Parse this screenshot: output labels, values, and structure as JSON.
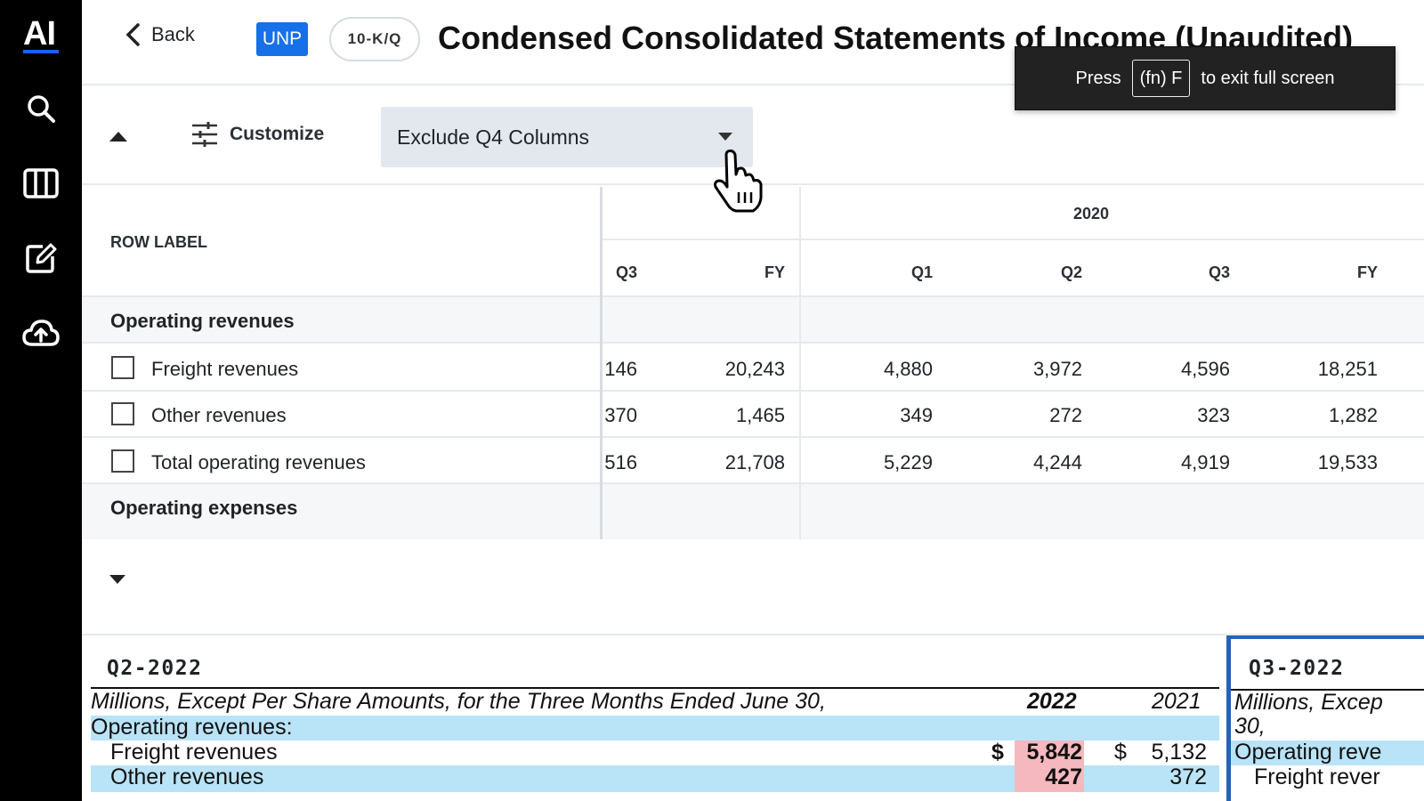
{
  "sidebar": {
    "logo": "AI",
    "items": [
      {
        "icon": "search-icon"
      },
      {
        "icon": "columns-icon"
      },
      {
        "icon": "edit-icon"
      },
      {
        "icon": "cloud-upload-icon"
      }
    ]
  },
  "header": {
    "back_label": "Back",
    "ticker": "UNP",
    "form_type": "10-K/Q",
    "title": "Condensed Consolidated Statements of Income (Unaudited)"
  },
  "toast": {
    "press": "Press",
    "key": "(fn) F",
    "message": "to exit full screen"
  },
  "toolbar": {
    "customize_label": "Customize",
    "filter_value": "Exclude Q4 Columns"
  },
  "table": {
    "row_label_header": "ROW LABEL",
    "year_header": "2020",
    "columns": [
      "Q3",
      "FY",
      "Q1",
      "Q2",
      "Q3",
      "FY"
    ],
    "sections": [
      {
        "label": "Operating revenues",
        "rows": [
          {
            "label": "Freight revenues",
            "values": [
              "146",
              "20,243",
              "4,880",
              "3,972",
              "4,596",
              "18,251"
            ]
          },
          {
            "label": "Other revenues",
            "values": [
              "370",
              "1,465",
              "349",
              "272",
              "323",
              "1,282"
            ]
          },
          {
            "label": "Total operating revenues",
            "values": [
              "516",
              "21,708",
              "5,229",
              "4,244",
              "4,919",
              "19,533"
            ]
          }
        ]
      },
      {
        "label": "Operating expenses",
        "rows": []
      }
    ]
  },
  "documents": [
    {
      "period": "Q2-2022",
      "caption": "Millions, Except Per Share Amounts, for the Three Months Ended June 30,",
      "year_current": "2022",
      "year_prior": "2021",
      "section": "Operating revenues:",
      "rows": [
        {
          "label": "Freight revenues",
          "currency": "$",
          "current": "5,842",
          "prior_currency": "$",
          "prior": "5,132"
        },
        {
          "label": "Other revenues",
          "current": "427",
          "prior": "372"
        }
      ]
    },
    {
      "period": "Q3-2022",
      "caption_line1": "Millions, Excep",
      "caption_line2": "30,",
      "section": "Operating reve",
      "row_label": "Freight rever"
    }
  ]
}
